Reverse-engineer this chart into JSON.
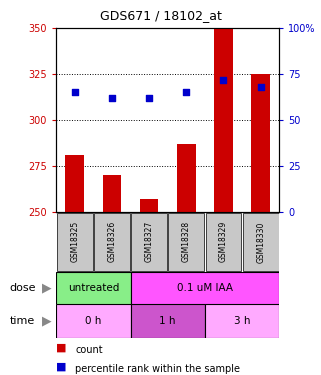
{
  "title": "GDS671 / 18102_at",
  "samples": [
    "GSM18325",
    "GSM18326",
    "GSM18327",
    "GSM18328",
    "GSM18329",
    "GSM18330"
  ],
  "bar_values": [
    281,
    270,
    257,
    287,
    350,
    325
  ],
  "bar_bottom": 250,
  "dot_percentile": [
    65,
    62,
    62,
    65,
    72,
    68
  ],
  "bar_color": "#cc0000",
  "dot_color": "#0000cc",
  "ylim_left": [
    250,
    350
  ],
  "ylim_right": [
    0,
    100
  ],
  "yticks_left": [
    250,
    275,
    300,
    325,
    350
  ],
  "yticks_right": [
    0,
    25,
    50,
    75,
    100
  ],
  "grid_values": [
    275,
    300,
    325
  ],
  "dose_labels": [
    {
      "text": "untreated",
      "start": 0,
      "end": 2,
      "color": "#88ee88"
    },
    {
      "text": "0.1 uM IAA",
      "start": 2,
      "end": 6,
      "color": "#ff55ff"
    }
  ],
  "time_labels": [
    {
      "text": "0 h",
      "start": 0,
      "end": 2,
      "color": "#ffaaff"
    },
    {
      "text": "1 h",
      "start": 2,
      "end": 4,
      "color": "#cc55cc"
    },
    {
      "text": "3 h",
      "start": 4,
      "end": 6,
      "color": "#ffaaff"
    }
  ],
  "dose_row_label": "dose",
  "time_row_label": "time",
  "legend_count_label": "count",
  "legend_pct_label": "percentile rank within the sample",
  "background_color": "#ffffff",
  "tick_label_color_left": "#cc0000",
  "tick_label_color_right": "#0000cc",
  "title_color": "#000000",
  "sample_box_color": "#c8c8c8"
}
